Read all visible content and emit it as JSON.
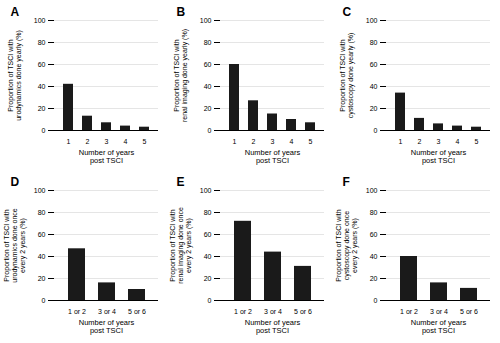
{
  "chart_data": [
    {
      "type": "bar",
      "title": "A",
      "ylabel": "Proportion of TSCI with\nurodynamics done yearly (%)",
      "xlabel": "Number of years\npost TSCI",
      "categories": [
        "1",
        "2",
        "3",
        "4",
        "5"
      ],
      "values": [
        42,
        13,
        7,
        4,
        3
      ],
      "color": "#1a1a1a",
      "ylim": [
        0,
        100
      ],
      "yticks": [
        0,
        20,
        40,
        60,
        80,
        100
      ],
      "grid": true
    },
    {
      "type": "bar",
      "title": "B",
      "ylabel": "Proportion of TSCI with\nrenal imaging done yearly (%)",
      "xlabel": "Number of years\npost TSCI",
      "categories": [
        "1",
        "2",
        "3",
        "4",
        "5"
      ],
      "values": [
        60,
        27,
        15,
        10,
        7
      ],
      "color": "#1a1a1a",
      "ylim": [
        0,
        100
      ],
      "yticks": [
        0,
        20,
        40,
        60,
        80,
        100
      ],
      "grid": true
    },
    {
      "type": "bar",
      "title": "C",
      "ylabel": "Proportion of TSCI with\ncystoscopy done yearly (%)",
      "xlabel": "Number of years\npost TSCI",
      "categories": [
        "1",
        "2",
        "3",
        "4",
        "5"
      ],
      "values": [
        34,
        11,
        6,
        4,
        3
      ],
      "color": "#1a1a1a",
      "ylim": [
        0,
        100
      ],
      "yticks": [
        0,
        20,
        40,
        60,
        80,
        100
      ],
      "grid": true
    },
    {
      "type": "bar",
      "title": "D",
      "ylabel": "Proportion of TSCI with\nurodynamics done once\nevery 2 years (%)",
      "xlabel": "Number of years\npost TSCI",
      "categories": [
        "1 or 2",
        "3 or 4",
        "5 or 6"
      ],
      "values": [
        47,
        16,
        10
      ],
      "color": "#1a1a1a",
      "ylim": [
        0,
        100
      ],
      "yticks": [
        0,
        20,
        40,
        60,
        80,
        100
      ],
      "grid": true
    },
    {
      "type": "bar",
      "title": "E",
      "ylabel": "Proportion of TSCI with\nrenal imaging done once\nevery 2 years (%)",
      "xlabel": "Number of years\npost TSCI",
      "categories": [
        "1 or 2",
        "3 or 4",
        "5 or 6"
      ],
      "values": [
        72,
        44,
        31
      ],
      "color": "#1a1a1a",
      "ylim": [
        0,
        100
      ],
      "yticks": [
        0,
        20,
        40,
        60,
        80,
        100
      ],
      "grid": true
    },
    {
      "type": "bar",
      "title": "F",
      "ylabel": "Proportion of TSCI with\ncystoscopy done once\nevery 2 years (%)",
      "xlabel": "Number of years\npost TSCI",
      "categories": [
        "1 or 2",
        "3 or 4",
        "5 or 6"
      ],
      "values": [
        40,
        16,
        11
      ],
      "color": "#1a1a1a",
      "ylim": [
        0,
        100
      ],
      "yticks": [
        0,
        20,
        40,
        60,
        80,
        100
      ],
      "grid": true
    }
  ]
}
